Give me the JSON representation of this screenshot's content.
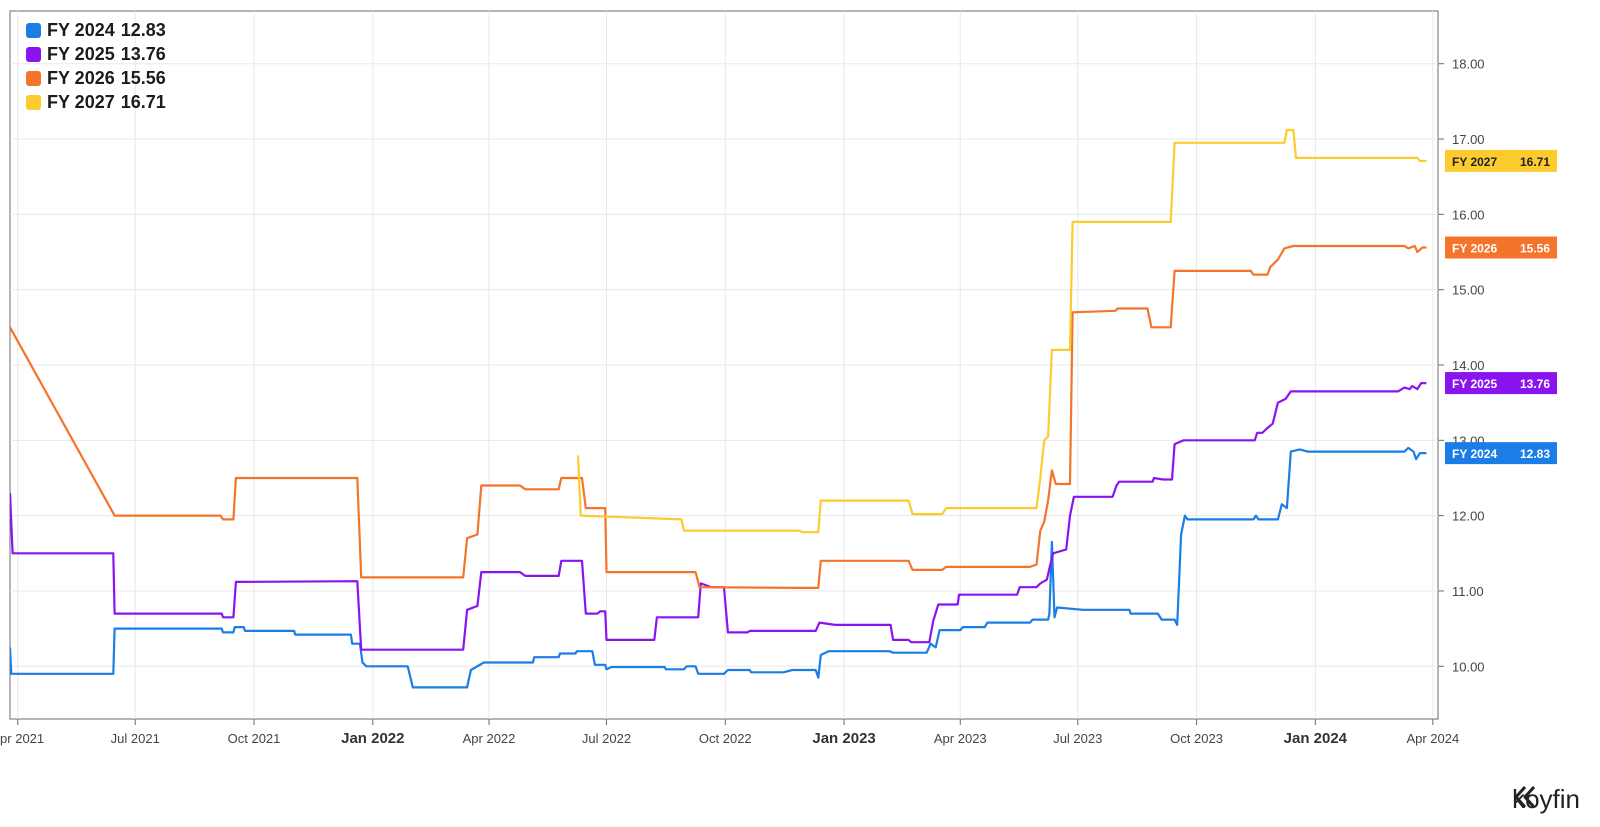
{
  "chart_data": {
    "type": "line",
    "title": "",
    "xlabel": "",
    "ylabel": "",
    "ylim": [
      9.3,
      18.7
    ],
    "xlim": [
      "2021-03-26",
      "2024-04-05"
    ],
    "yticks": [
      "10.00",
      "11.00",
      "12.00",
      "13.00",
      "14.00",
      "15.00",
      "16.00",
      "17.00",
      "18.00"
    ],
    "xticks": [
      {
        "label": "Apr 2021",
        "date": "2021-04-01",
        "major": false
      },
      {
        "label": "Jul 2021",
        "date": "2021-07-01",
        "major": false
      },
      {
        "label": "Oct 2021",
        "date": "2021-10-01",
        "major": false
      },
      {
        "label": "Jan 2022",
        "date": "2022-01-01",
        "major": true
      },
      {
        "label": "Apr 2022",
        "date": "2022-04-01",
        "major": false
      },
      {
        "label": "Jul 2022",
        "date": "2022-07-01",
        "major": false
      },
      {
        "label": "Oct 2022",
        "date": "2022-10-01",
        "major": false
      },
      {
        "label": "Jan 2023",
        "date": "2023-01-01",
        "major": true
      },
      {
        "label": "Apr 2023",
        "date": "2023-04-01",
        "major": false
      },
      {
        "label": "Jul 2023",
        "date": "2023-07-01",
        "major": false
      },
      {
        "label": "Oct 2023",
        "date": "2023-10-01",
        "major": false
      },
      {
        "label": "Jan 2024",
        "date": "2024-01-01",
        "major": true
      },
      {
        "label": "Apr 2024",
        "date": "2024-04-01",
        "major": false
      }
    ],
    "legend_position": "top-left",
    "grid": true,
    "series": [
      {
        "name": "FY 2024",
        "last": "12.83",
        "color": "#1a7ee6",
        "points": [
          [
            "2021-03-26",
            10.25
          ],
          [
            "2021-03-27",
            9.9
          ],
          [
            "2021-06-14",
            9.9
          ],
          [
            "2021-06-15",
            10.5
          ],
          [
            "2021-09-06",
            10.5
          ],
          [
            "2021-09-07",
            10.45
          ],
          [
            "2021-09-15",
            10.45
          ],
          [
            "2021-09-16",
            10.52
          ],
          [
            "2021-09-23",
            10.52
          ],
          [
            "2021-09-24",
            10.47
          ],
          [
            "2021-11-01",
            10.47
          ],
          [
            "2021-11-02",
            10.42
          ],
          [
            "2021-12-15",
            10.42
          ],
          [
            "2021-12-16",
            10.3
          ],
          [
            "2021-12-22",
            10.3
          ],
          [
            "2021-12-24",
            10.05
          ],
          [
            "2021-12-27",
            10.0
          ],
          [
            "2022-01-28",
            10.0
          ],
          [
            "2022-02-01",
            9.72
          ],
          [
            "2022-03-15",
            9.72
          ],
          [
            "2022-03-18",
            9.95
          ],
          [
            "2022-03-28",
            10.05
          ],
          [
            "2022-05-05",
            10.05
          ],
          [
            "2022-05-06",
            10.12
          ],
          [
            "2022-05-25",
            10.12
          ],
          [
            "2022-05-26",
            10.17
          ],
          [
            "2022-06-07",
            10.17
          ],
          [
            "2022-06-08",
            10.2
          ],
          [
            "2022-06-20",
            10.2
          ],
          [
            "2022-06-22",
            10.02
          ],
          [
            "2022-06-30",
            10.02
          ],
          [
            "2022-07-01",
            9.96
          ],
          [
            "2022-07-05",
            9.99
          ],
          [
            "2022-08-15",
            9.99
          ],
          [
            "2022-08-16",
            9.96
          ],
          [
            "2022-08-30",
            9.96
          ],
          [
            "2022-09-01",
            10.0
          ],
          [
            "2022-09-08",
            10.0
          ],
          [
            "2022-09-10",
            9.9
          ],
          [
            "2022-09-30",
            9.9
          ],
          [
            "2022-10-03",
            9.95
          ],
          [
            "2022-10-20",
            9.95
          ],
          [
            "2022-10-21",
            9.92
          ],
          [
            "2022-11-15",
            9.92
          ],
          [
            "2022-11-22",
            9.95
          ],
          [
            "2022-12-10",
            9.95
          ],
          [
            "2022-12-12",
            9.85
          ],
          [
            "2022-12-14",
            10.15
          ],
          [
            "2022-12-20",
            10.2
          ],
          [
            "2023-02-05",
            10.2
          ],
          [
            "2023-02-08",
            10.18
          ],
          [
            "2023-03-06",
            10.18
          ],
          [
            "2023-03-09",
            10.3
          ],
          [
            "2023-03-13",
            10.25
          ],
          [
            "2023-03-16",
            10.48
          ],
          [
            "2023-04-01",
            10.48
          ],
          [
            "2023-04-03",
            10.52
          ],
          [
            "2023-04-20",
            10.52
          ],
          [
            "2023-04-22",
            10.58
          ],
          [
            "2023-05-25",
            10.58
          ],
          [
            "2023-05-27",
            10.62
          ],
          [
            "2023-06-08",
            10.62
          ],
          [
            "2023-06-09",
            10.7
          ],
          [
            "2023-06-11",
            11.65
          ],
          [
            "2023-06-13",
            10.65
          ],
          [
            "2023-06-15",
            10.78
          ],
          [
            "2023-07-05",
            10.75
          ],
          [
            "2023-08-10",
            10.75
          ],
          [
            "2023-08-11",
            10.7
          ],
          [
            "2023-09-01",
            10.7
          ],
          [
            "2023-09-04",
            10.62
          ],
          [
            "2023-09-14",
            10.62
          ],
          [
            "2023-09-16",
            10.55
          ],
          [
            "2023-09-19",
            11.75
          ],
          [
            "2023-09-22",
            12.0
          ],
          [
            "2023-09-24",
            11.95
          ],
          [
            "2023-11-14",
            11.95
          ],
          [
            "2023-11-16",
            12.0
          ],
          [
            "2023-11-18",
            11.95
          ],
          [
            "2023-12-03",
            11.95
          ],
          [
            "2023-12-06",
            12.15
          ],
          [
            "2023-12-10",
            12.1
          ],
          [
            "2023-12-13",
            12.85
          ],
          [
            "2023-12-20",
            12.88
          ],
          [
            "2023-12-26",
            12.85
          ],
          [
            "2024-03-10",
            12.85
          ],
          [
            "2024-03-13",
            12.9
          ],
          [
            "2024-03-17",
            12.85
          ],
          [
            "2024-03-19",
            12.75
          ],
          [
            "2024-03-22",
            12.83
          ],
          [
            "2024-03-27",
            12.83
          ]
        ]
      },
      {
        "name": "FY 2025",
        "last": "13.76",
        "color": "#8a14f0",
        "points": [
          [
            "2021-03-26",
            12.3
          ],
          [
            "2021-03-28",
            11.5
          ],
          [
            "2021-06-14",
            11.5
          ],
          [
            "2021-06-15",
            10.7
          ],
          [
            "2021-09-06",
            10.7
          ],
          [
            "2021-09-07",
            10.65
          ],
          [
            "2021-09-15",
            10.65
          ],
          [
            "2021-09-17",
            11.12
          ],
          [
            "2021-12-20",
            11.13
          ],
          [
            "2021-12-23",
            10.22
          ],
          [
            "2022-03-12",
            10.22
          ],
          [
            "2022-03-15",
            10.75
          ],
          [
            "2022-03-23",
            10.8
          ],
          [
            "2022-03-26",
            11.25
          ],
          [
            "2022-04-25",
            11.25
          ],
          [
            "2022-04-29",
            11.2
          ],
          [
            "2022-05-25",
            11.2
          ],
          [
            "2022-05-27",
            11.4
          ],
          [
            "2022-06-12",
            11.4
          ],
          [
            "2022-06-15",
            10.7
          ],
          [
            "2022-06-24",
            10.7
          ],
          [
            "2022-06-26",
            10.73
          ],
          [
            "2022-06-30",
            10.73
          ],
          [
            "2022-07-01",
            10.35
          ],
          [
            "2022-08-07",
            10.35
          ],
          [
            "2022-08-09",
            10.65
          ],
          [
            "2022-09-10",
            10.65
          ],
          [
            "2022-09-12",
            11.1
          ],
          [
            "2022-09-20",
            11.05
          ],
          [
            "2022-09-30",
            11.05
          ],
          [
            "2022-10-03",
            10.45
          ],
          [
            "2022-10-18",
            10.45
          ],
          [
            "2022-10-20",
            10.47
          ],
          [
            "2022-12-10",
            10.47
          ],
          [
            "2022-12-13",
            10.58
          ],
          [
            "2022-12-25",
            10.55
          ],
          [
            "2023-02-06",
            10.55
          ],
          [
            "2023-02-08",
            10.35
          ],
          [
            "2023-02-20",
            10.35
          ],
          [
            "2023-02-22",
            10.32
          ],
          [
            "2023-03-08",
            10.32
          ],
          [
            "2023-03-11",
            10.6
          ],
          [
            "2023-03-15",
            10.82
          ],
          [
            "2023-03-30",
            10.82
          ],
          [
            "2023-03-31",
            10.95
          ],
          [
            "2023-05-15",
            10.95
          ],
          [
            "2023-05-17",
            11.05
          ],
          [
            "2023-05-30",
            11.05
          ],
          [
            "2023-06-02",
            11.1
          ],
          [
            "2023-06-07",
            11.15
          ],
          [
            "2023-06-09",
            11.3
          ],
          [
            "2023-06-12",
            11.5
          ],
          [
            "2023-06-22",
            11.55
          ],
          [
            "2023-06-25",
            12.0
          ],
          [
            "2023-06-28",
            12.25
          ],
          [
            "2023-07-28",
            12.25
          ],
          [
            "2023-07-31",
            12.4
          ],
          [
            "2023-08-02",
            12.45
          ],
          [
            "2023-08-28",
            12.45
          ],
          [
            "2023-08-29",
            12.5
          ],
          [
            "2023-09-05",
            12.48
          ],
          [
            "2023-09-12",
            12.48
          ],
          [
            "2023-09-14",
            12.95
          ],
          [
            "2023-09-21",
            13.0
          ],
          [
            "2023-11-15",
            13.0
          ],
          [
            "2023-11-17",
            13.1
          ],
          [
            "2023-11-21",
            13.1
          ],
          [
            "2023-11-24",
            13.15
          ],
          [
            "2023-11-29",
            13.22
          ],
          [
            "2023-12-03",
            13.5
          ],
          [
            "2023-12-09",
            13.55
          ],
          [
            "2023-12-13",
            13.65
          ],
          [
            "2024-03-05",
            13.65
          ],
          [
            "2024-03-10",
            13.7
          ],
          [
            "2024-03-14",
            13.68
          ],
          [
            "2024-03-16",
            13.72
          ],
          [
            "2024-03-20",
            13.68
          ],
          [
            "2024-03-23",
            13.76
          ],
          [
            "2024-03-27",
            13.76
          ]
        ]
      },
      {
        "name": "FY 2026",
        "last": "15.56",
        "color": "#f5742c",
        "points": [
          [
            "2021-03-26",
            14.5
          ],
          [
            "2021-06-15",
            12.0
          ],
          [
            "2021-09-05",
            12.0
          ],
          [
            "2021-09-07",
            11.95
          ],
          [
            "2021-09-15",
            11.95
          ],
          [
            "2021-09-17",
            12.5
          ],
          [
            "2021-12-20",
            12.5
          ],
          [
            "2021-12-23",
            11.18
          ],
          [
            "2022-03-12",
            11.18
          ],
          [
            "2022-03-15",
            11.7
          ],
          [
            "2022-03-23",
            11.75
          ],
          [
            "2022-03-26",
            12.4
          ],
          [
            "2022-04-25",
            12.4
          ],
          [
            "2022-04-29",
            12.35
          ],
          [
            "2022-05-25",
            12.35
          ],
          [
            "2022-05-27",
            12.5
          ],
          [
            "2022-06-12",
            12.5
          ],
          [
            "2022-06-15",
            12.1
          ],
          [
            "2022-06-30",
            12.1
          ],
          [
            "2022-07-01",
            11.25
          ],
          [
            "2022-09-08",
            11.25
          ],
          [
            "2022-09-11",
            11.05
          ],
          [
            "2022-11-27",
            11.04
          ],
          [
            "2022-12-12",
            11.04
          ],
          [
            "2022-12-14",
            11.4
          ],
          [
            "2023-02-20",
            11.4
          ],
          [
            "2023-02-23",
            11.28
          ],
          [
            "2023-03-18",
            11.28
          ],
          [
            "2023-03-21",
            11.32
          ],
          [
            "2023-05-25",
            11.32
          ],
          [
            "2023-05-30",
            11.35
          ],
          [
            "2023-06-02",
            11.8
          ],
          [
            "2023-06-05",
            11.92
          ],
          [
            "2023-06-08",
            12.2
          ],
          [
            "2023-06-11",
            12.6
          ],
          [
            "2023-06-14",
            12.42
          ],
          [
            "2023-06-25",
            12.42
          ],
          [
            "2023-06-27",
            14.7
          ],
          [
            "2023-07-30",
            14.72
          ],
          [
            "2023-08-01",
            14.75
          ],
          [
            "2023-08-24",
            14.75
          ],
          [
            "2023-08-27",
            14.5
          ],
          [
            "2023-09-11",
            14.5
          ],
          [
            "2023-09-14",
            15.25
          ],
          [
            "2023-11-12",
            15.25
          ],
          [
            "2023-11-14",
            15.2
          ],
          [
            "2023-11-25",
            15.2
          ],
          [
            "2023-11-27",
            15.3
          ],
          [
            "2023-12-03",
            15.4
          ],
          [
            "2023-12-08",
            15.55
          ],
          [
            "2023-12-15",
            15.58
          ],
          [
            "2024-03-10",
            15.58
          ],
          [
            "2024-03-13",
            15.55
          ],
          [
            "2024-03-18",
            15.58
          ],
          [
            "2024-03-20",
            15.5
          ],
          [
            "2024-03-24",
            15.56
          ],
          [
            "2024-03-27",
            15.56
          ]
        ]
      },
      {
        "name": "FY 2027",
        "last": "16.71",
        "color": "#fccb2e",
        "points": [
          [
            "2022-06-09",
            12.8
          ],
          [
            "2022-06-11",
            12.0
          ],
          [
            "2022-08-28",
            11.95
          ],
          [
            "2022-08-30",
            11.8
          ],
          [
            "2022-11-27",
            11.8
          ],
          [
            "2022-11-30",
            11.78
          ],
          [
            "2022-12-12",
            11.78
          ],
          [
            "2022-12-14",
            12.2
          ],
          [
            "2023-02-20",
            12.2
          ],
          [
            "2023-02-23",
            12.02
          ],
          [
            "2023-03-18",
            12.02
          ],
          [
            "2023-03-21",
            12.1
          ],
          [
            "2023-05-30",
            12.1
          ],
          [
            "2023-06-02",
            12.5
          ],
          [
            "2023-06-05",
            13.0
          ],
          [
            "2023-06-08",
            13.05
          ],
          [
            "2023-06-11",
            14.2
          ],
          [
            "2023-06-25",
            14.2
          ],
          [
            "2023-06-27",
            15.9
          ],
          [
            "2023-09-11",
            15.9
          ],
          [
            "2023-09-14",
            16.95
          ],
          [
            "2023-12-08",
            16.95
          ],
          [
            "2023-12-10",
            17.12
          ],
          [
            "2023-12-15",
            17.12
          ],
          [
            "2023-12-17",
            16.75
          ],
          [
            "2024-03-20",
            16.75
          ],
          [
            "2024-03-22",
            16.71
          ],
          [
            "2024-03-27",
            16.71
          ]
        ]
      }
    ]
  },
  "brand": {
    "name": "koyfin"
  }
}
